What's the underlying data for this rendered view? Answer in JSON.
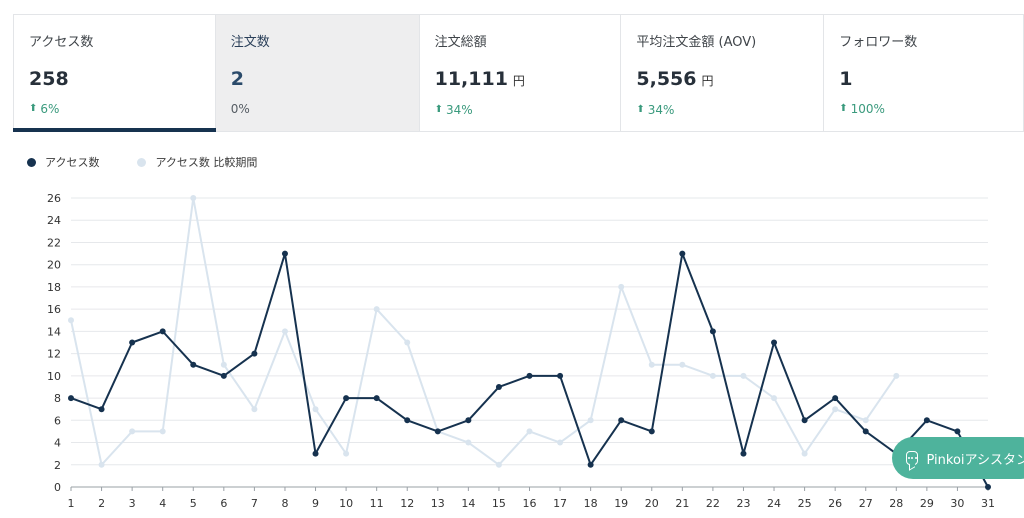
{
  "cards": [
    {
      "label": "アクセス数",
      "value": "258",
      "unit": "",
      "change": "6%",
      "direction": "up"
    },
    {
      "label": "注文数",
      "value": "2",
      "unit": "",
      "change": "0%",
      "direction": "flat"
    },
    {
      "label": "注文総額",
      "value": "11,111",
      "unit": "円",
      "change": "34%",
      "direction": "up"
    },
    {
      "label": "平均注文金額 (AOV)",
      "value": "5,556",
      "unit": "円",
      "change": "34%",
      "direction": "up"
    },
    {
      "label": "フォロワー数",
      "value": "1",
      "unit": "",
      "change": "100%",
      "direction": "up"
    }
  ],
  "assistant": {
    "label": "Pinkoiアシスタント",
    "icon": "chat-bubble-icon"
  },
  "colors": {
    "primary": "#16324f",
    "comparison": "#d9e4ee",
    "up": "#3a9a7d",
    "assistant": "#4eb39c",
    "selected_bg": "#eeeeef"
  },
  "chart_data": {
    "type": "line",
    "x": [
      1,
      2,
      3,
      4,
      5,
      6,
      7,
      8,
      9,
      10,
      11,
      12,
      13,
      14,
      15,
      16,
      17,
      18,
      19,
      20,
      21,
      22,
      23,
      24,
      25,
      26,
      27,
      28,
      29,
      30,
      31
    ],
    "series": [
      {
        "name": "アクセス数",
        "color": "#16324f",
        "values": [
          8,
          7,
          13,
          14,
          11,
          10,
          12,
          21,
          3,
          8,
          8,
          6,
          5,
          6,
          9,
          10,
          10,
          2,
          6,
          5,
          21,
          14,
          3,
          13,
          6,
          8,
          5,
          3,
          6,
          5,
          0
        ]
      },
      {
        "name": "アクセス数 比較期間",
        "color": "#d9e4ee",
        "values": [
          15,
          2,
          5,
          5,
          26,
          11,
          7,
          14,
          7,
          3,
          16,
          13,
          5,
          4,
          2,
          5,
          4,
          6,
          18,
          11,
          11,
          10,
          10,
          8,
          3,
          7,
          6,
          10,
          null,
          null,
          null
        ]
      }
    ],
    "ylim": [
      0,
      26
    ],
    "yticks": [
      0,
      2,
      4,
      6,
      8,
      10,
      12,
      14,
      16,
      18,
      20,
      22,
      24,
      26
    ],
    "xlabel": "",
    "ylabel": "",
    "grid": true,
    "legend": "top-left"
  }
}
